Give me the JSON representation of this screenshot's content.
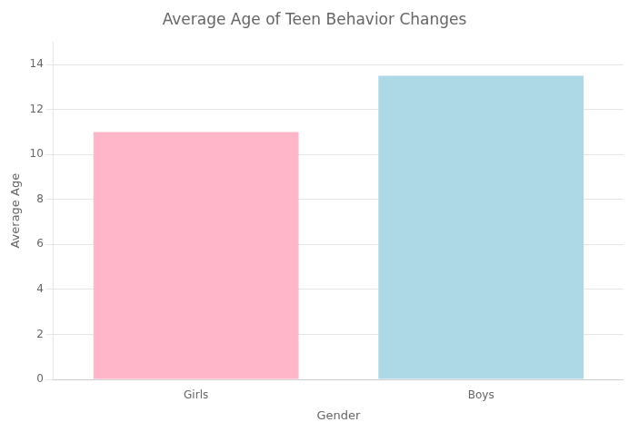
{
  "chart_data": {
    "type": "bar",
    "title": "Average Age of Teen Behavior Changes",
    "xlabel": "Gender",
    "ylabel": "Average Age",
    "categories": [
      "Girls",
      "Boys"
    ],
    "values": [
      11.0,
      13.5
    ],
    "colors": [
      "#FFB6C8",
      "#ADD8E6"
    ],
    "ylim": [
      0,
      15
    ],
    "yticks": [
      0,
      2,
      4,
      6,
      8,
      10,
      12,
      14
    ],
    "grid": true
  }
}
